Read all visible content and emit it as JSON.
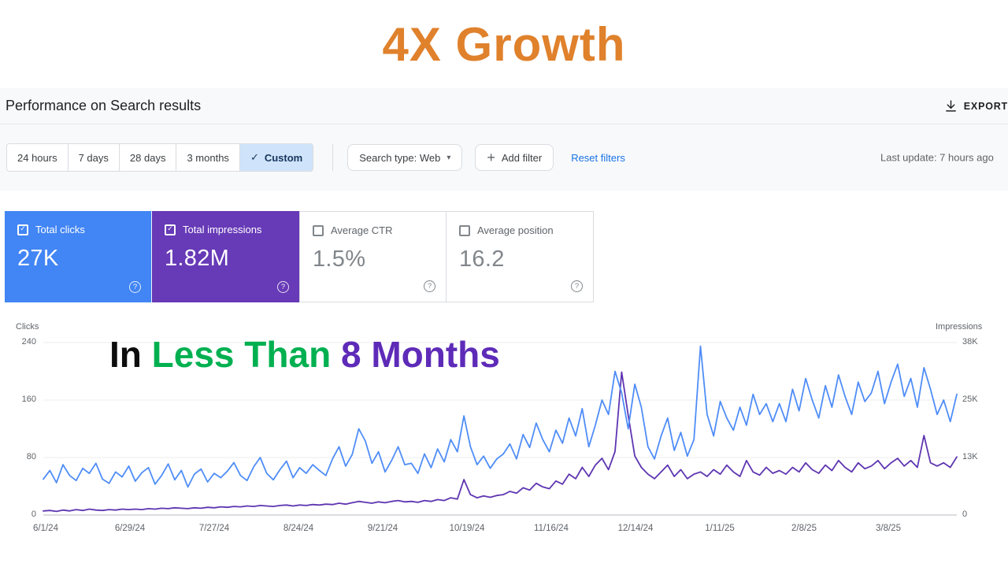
{
  "banner": {
    "title": "4X Growth"
  },
  "header": {
    "title": "Performance on Search results",
    "export_label": "EXPORT"
  },
  "filters": {
    "date_ranges": [
      "24 hours",
      "7 days",
      "28 days",
      "3 months"
    ],
    "custom_label": "Custom",
    "search_type_label": "Search type: Web",
    "add_filter_label": "Add filter",
    "reset_filters_label": "Reset filters",
    "last_update": "Last update: 7 hours ago"
  },
  "metrics": [
    {
      "label": "Total clicks",
      "value": "27K",
      "selected": true,
      "color": "#4285f4"
    },
    {
      "label": "Total impressions",
      "value": "1.82M",
      "selected": true,
      "color": "#673ab7"
    },
    {
      "label": "Average CTR",
      "value": "1.5%",
      "selected": false
    },
    {
      "label": "Average position",
      "value": "16.2",
      "selected": false
    }
  ],
  "overlay_headline": {
    "word1": "In",
    "word2": "Less Than",
    "word3": "8 Months"
  },
  "icons": {
    "checkmark": "✓",
    "plus": "+",
    "caret_down": "▾",
    "help": "?"
  },
  "colors": {
    "banner_title": "#e0812c",
    "clicks_card": "#4285f4",
    "impressions_card": "#673ab7",
    "clicks_line": "#4f8df7",
    "impressions_line": "#5e35b1",
    "headline_green": "#00b050",
    "headline_purple": "#5e2bb8",
    "link_blue": "#1a73e8"
  },
  "chart_data": {
    "type": "line",
    "title": "Performance on Search results",
    "y_left_label": "Clicks",
    "y_right_label": "Impressions",
    "y_left_ticks": [
      "240",
      "160",
      "80",
      "0"
    ],
    "y_right_ticks": [
      "38K",
      "25K",
      "13K",
      "0"
    ],
    "y_left_max": 240,
    "y_right_max": 38,
    "grid": true,
    "legend_position": "none",
    "x_tick_labels": [
      "6/1/24",
      "6/29/24",
      "7/27/24",
      "8/24/24",
      "9/21/24",
      "10/19/24",
      "11/16/24",
      "12/14/24",
      "1/11/25",
      "2/8/25",
      "3/8/25"
    ],
    "series": [
      {
        "id": "total-clicks",
        "name": "Total clicks",
        "axis": "left",
        "unit": "clicks",
        "color": "#4f8df7",
        "values": [
          50,
          62,
          45,
          70,
          55,
          48,
          65,
          58,
          72,
          50,
          44,
          60,
          53,
          68,
          47,
          59,
          66,
          43,
          55,
          71,
          49,
          62,
          39,
          57,
          64,
          46,
          58,
          52,
          61,
          73,
          55,
          48,
          67,
          80,
          58,
          49,
          63,
          75,
          52,
          66,
          58,
          70,
          62,
          55,
          78,
          95,
          68,
          84,
          120,
          103,
          72,
          88,
          60,
          76,
          95,
          70,
          72,
          58,
          85,
          66,
          92,
          74,
          105,
          88,
          138,
          95,
          70,
          82,
          65,
          78,
          85,
          99,
          78,
          112,
          94,
          128,
          105,
          88,
          118,
          100,
          135,
          110,
          148,
          95,
          125,
          160,
          140,
          200,
          170,
          120,
          182,
          150,
          95,
          78,
          110,
          135,
          90,
          115,
          82,
          105,
          235,
          140,
          110,
          158,
          135,
          118,
          150,
          125,
          168,
          140,
          155,
          130,
          155,
          130,
          175,
          145,
          190,
          160,
          135,
          180,
          150,
          195,
          165,
          140,
          185,
          158,
          170,
          200,
          155,
          185,
          210,
          165,
          190,
          150,
          205,
          175,
          140,
          160,
          130,
          168
        ]
      },
      {
        "id": "total-impressions",
        "name": "Total impressions",
        "axis": "right",
        "unit": "thousands",
        "color": "#5e35b1",
        "values": [
          0.9,
          1.0,
          0.8,
          1.1,
          0.9,
          1.2,
          1.0,
          1.3,
          1.1,
          1.0,
          1.2,
          1.1,
          1.3,
          1.2,
          1.3,
          1.2,
          1.4,
          1.3,
          1.5,
          1.4,
          1.6,
          1.5,
          1.4,
          1.6,
          1.5,
          1.7,
          1.6,
          1.8,
          1.7,
          1.9,
          1.8,
          2.0,
          1.9,
          2.1,
          2.0,
          1.9,
          2.1,
          2.2,
          2.0,
          2.2,
          2.1,
          2.3,
          2.2,
          2.4,
          2.3,
          2.6,
          2.4,
          2.7,
          3.0,
          2.8,
          2.6,
          2.9,
          2.7,
          3.0,
          3.2,
          2.9,
          3.0,
          2.8,
          3.2,
          3.0,
          3.4,
          3.2,
          3.8,
          3.5,
          7.8,
          4.5,
          3.8,
          4.2,
          3.9,
          4.3,
          4.5,
          5.2,
          4.8,
          6.0,
          5.5,
          7.0,
          6.2,
          5.8,
          7.5,
          6.8,
          9.0,
          8.0,
          10.5,
          8.5,
          11.0,
          12.5,
          10.0,
          14.0,
          31.5,
          22.0,
          13.0,
          10.5,
          9.0,
          8.0,
          9.5,
          11.0,
          8.5,
          10.0,
          8.0,
          9.0,
          9.5,
          8.5,
          10.0,
          9.0,
          11.0,
          9.5,
          8.5,
          12.0,
          9.5,
          8.8,
          10.5,
          9.2,
          9.8,
          9.0,
          10.5,
          9.5,
          11.5,
          10.0,
          9.2,
          11.0,
          9.8,
          12.0,
          10.5,
          9.5,
          11.5,
          10.2,
          10.8,
          12.0,
          10.2,
          11.5,
          12.5,
          10.8,
          12.0,
          10.5,
          17.5,
          11.5,
          10.8,
          11.5,
          10.5,
          12.8
        ]
      }
    ]
  }
}
